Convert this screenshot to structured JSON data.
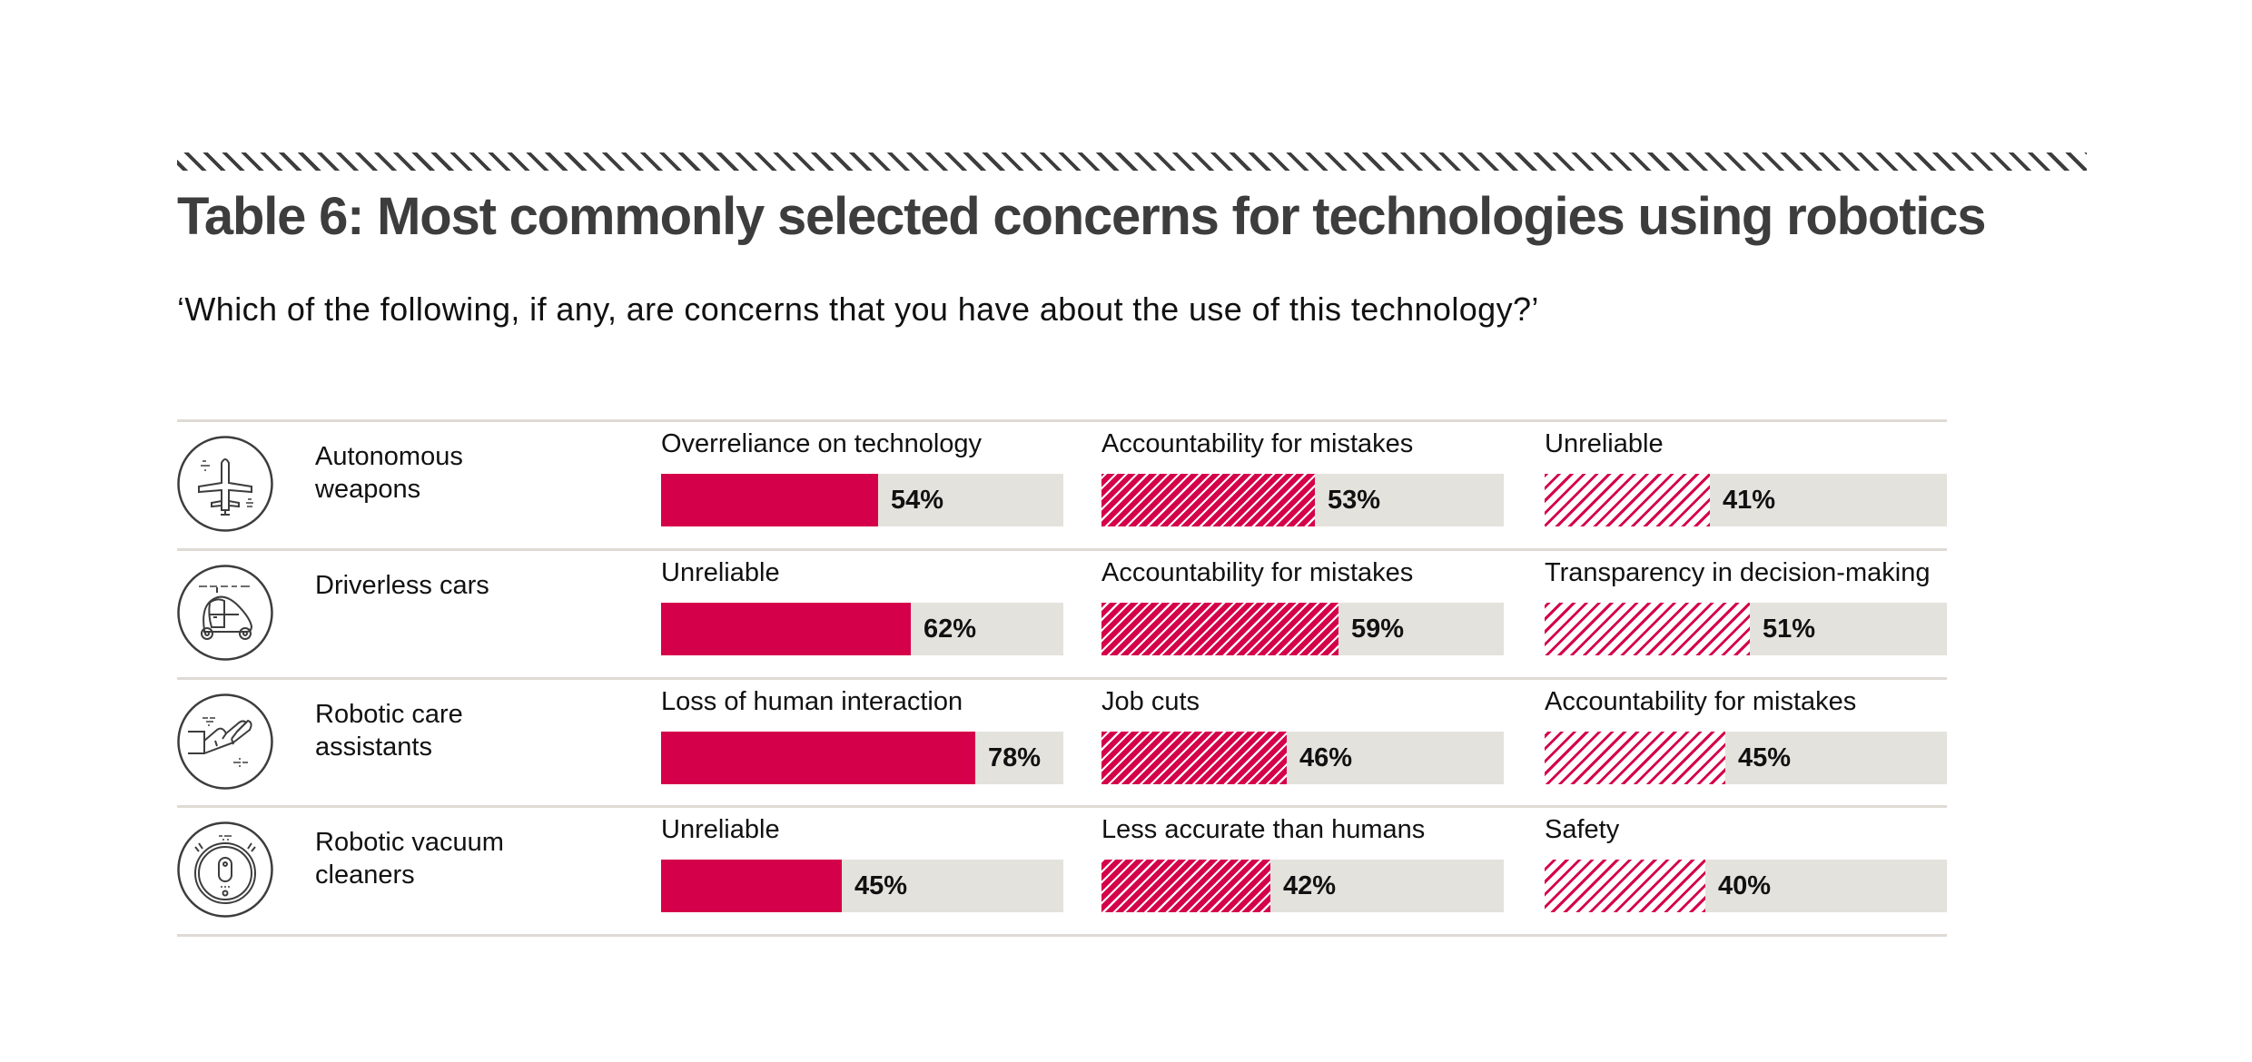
{
  "header": {
    "title": "Table 6: Most commonly selected concerns for technologies using robotics",
    "subtitle": "‘Which of the following, if any, are concerns that you have about the use of this technology?’"
  },
  "colors": {
    "accent": "#d5004a",
    "bar_track": "#e3e2dc",
    "title": "#3d3d3d",
    "divider": "#e0dad4"
  },
  "chart_data": {
    "type": "bar",
    "title": "Table 6: Most commonly selected concerns for technologies using robotics",
    "subtitle": "‘Which of the following, if any, are concerns that you have about the use of this technology?’",
    "xlabel": "",
    "ylabel": "",
    "ylim": [
      0,
      100
    ],
    "unit": "%",
    "legend": "none",
    "grid": false,
    "rows": [
      {
        "technology": "Autonomous weapons",
        "icon": "drone-icon",
        "concerns": [
          {
            "label": "Overreliance on technology",
            "value": 54,
            "value_label": "54%",
            "style": "solid"
          },
          {
            "label": "Accountability for mistakes",
            "value": 53,
            "value_label": "53%",
            "style": "hatch-dense"
          },
          {
            "label": "Unreliable",
            "value": 41,
            "value_label": "41%",
            "style": "hatch-light"
          }
        ]
      },
      {
        "technology": "Driverless cars",
        "icon": "driverless-car-icon",
        "concerns": [
          {
            "label": "Unreliable",
            "value": 62,
            "value_label": "62%",
            "style": "solid"
          },
          {
            "label": "Accountability for mistakes",
            "value": 59,
            "value_label": "59%",
            "style": "hatch-dense"
          },
          {
            "label": "Transparency in decision-making",
            "value": 51,
            "value_label": "51%",
            "style": "hatch-light"
          }
        ]
      },
      {
        "technology": "Robotic care assistants",
        "icon": "robotic-hand-icon",
        "concerns": [
          {
            "label": "Loss of human interaction",
            "value": 78,
            "value_label": "78%",
            "style": "solid"
          },
          {
            "label": "Job cuts",
            "value": 46,
            "value_label": "46%",
            "style": "hatch-dense"
          },
          {
            "label": "Accountability for mistakes",
            "value": 45,
            "value_label": "45%",
            "style": "hatch-light"
          }
        ]
      },
      {
        "technology": "Robotic vacuum cleaners",
        "icon": "robot-vacuum-icon",
        "concerns": [
          {
            "label": "Unreliable",
            "value": 45,
            "value_label": "45%",
            "style": "solid"
          },
          {
            "label": "Less accurate than humans",
            "value": 42,
            "value_label": "42%",
            "style": "hatch-dense"
          },
          {
            "label": "Safety",
            "value": 40,
            "value_label": "40%",
            "style": "hatch-light"
          }
        ]
      }
    ]
  },
  "rows": [
    {
      "label_line1": "Autonomous",
      "label_line2": "weapons"
    },
    {
      "label_line1": "Driverless cars",
      "label_line2": ""
    },
    {
      "label_line1": "Robotic care",
      "label_line2": "assistants"
    },
    {
      "label_line1": "Robotic vacuum",
      "label_line2": "cleaners"
    }
  ]
}
